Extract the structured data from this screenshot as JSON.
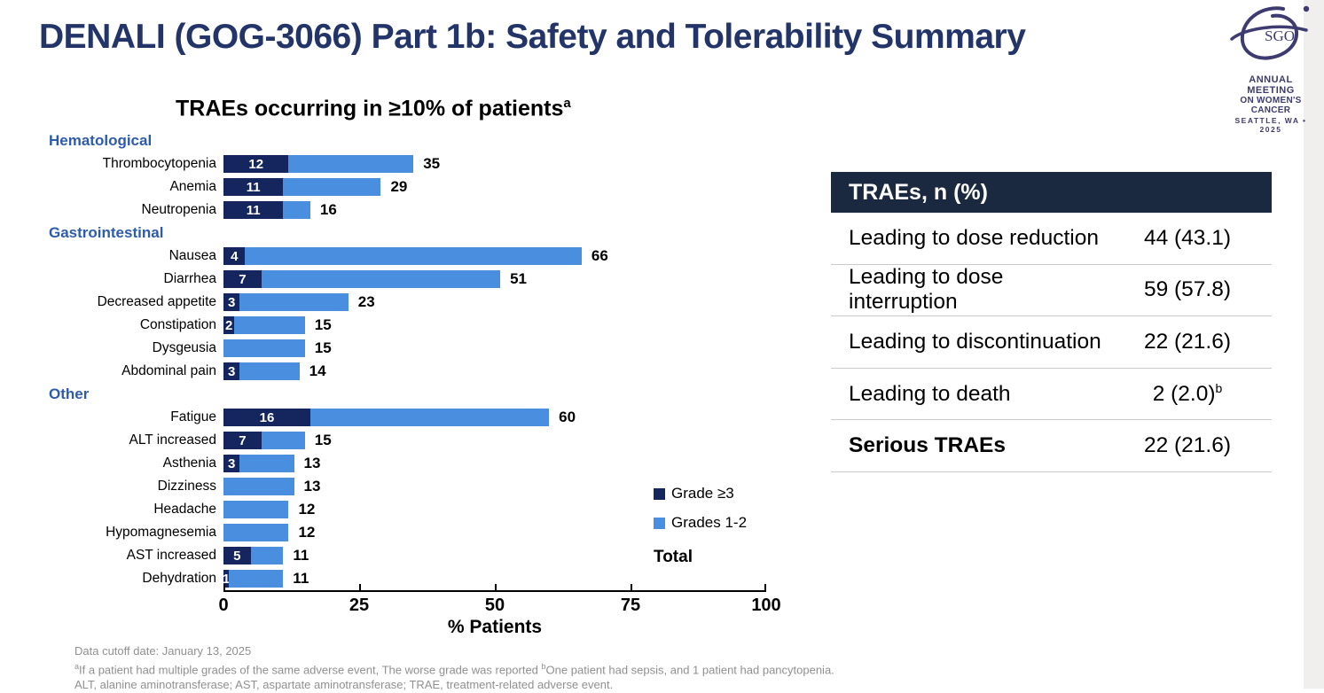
{
  "slide": {
    "title": "DENALI (GOG-3066) Part 1b: Safety and Tolerability Summary",
    "logo": {
      "org": "SGO",
      "line1": "ANNUAL MEETING",
      "line2": "ON WOMEN'S CANCER",
      "line3": "SEATTLE, WA • 2025"
    }
  },
  "chart_data": {
    "type": "bar",
    "orientation": "horizontal",
    "stacked": true,
    "title": "TRAEs occurring in ≥10% of patients",
    "title_superscript": "a",
    "xlabel": "% Patients",
    "xlim": [
      0,
      100
    ],
    "xticks": [
      0,
      25,
      50,
      75,
      100
    ],
    "legend": [
      {
        "label": "Grade ≥3",
        "color": "#15265e"
      },
      {
        "label": "Grades 1-2",
        "color": "#4a8ee0"
      },
      {
        "label": "Total",
        "color": null
      }
    ],
    "series_note": "grade3 = Grade ≥3 segment (dark navy, labeled inside bar); total = full bar length (Grades 1-2 segment = total - grade3); total labeled right of bar",
    "groups": [
      {
        "name": "Hematological",
        "rows": [
          {
            "label": "Thrombocytopenia",
            "grade3": 12,
            "total": 35
          },
          {
            "label": "Anemia",
            "grade3": 11,
            "total": 29
          },
          {
            "label": "Neutropenia",
            "grade3": 11,
            "total": 16
          }
        ]
      },
      {
        "name": "Gastrointestinal",
        "rows": [
          {
            "label": "Nausea",
            "grade3": 4,
            "total": 66
          },
          {
            "label": "Diarrhea",
            "grade3": 7,
            "total": 51
          },
          {
            "label": "Decreased appetite",
            "grade3": 3,
            "total": 23
          },
          {
            "label": "Constipation",
            "grade3": 2,
            "total": 15
          },
          {
            "label": "Dysgeusia",
            "grade3": 0,
            "total": 15
          },
          {
            "label": "Abdominal pain",
            "grade3": 3,
            "total": 14
          }
        ]
      },
      {
        "name": "Other",
        "rows": [
          {
            "label": "Fatigue",
            "grade3": 16,
            "total": 60
          },
          {
            "label": "ALT increased",
            "grade3": 7,
            "total": 15
          },
          {
            "label": "Asthenia",
            "grade3": 3,
            "total": 13
          },
          {
            "label": "Dizziness",
            "grade3": 0,
            "total": 13
          },
          {
            "label": "Headache",
            "grade3": 0,
            "total": 12
          },
          {
            "label": "Hypomagnesemia",
            "grade3": 0,
            "total": 12
          },
          {
            "label": "AST increased",
            "grade3": 5,
            "total": 11
          },
          {
            "label": "Dehydration",
            "grade3": 1,
            "total": 11
          }
        ]
      }
    ]
  },
  "table": {
    "header": "TRAEs, n (%)",
    "rows": [
      {
        "label": "Leading to dose reduction",
        "value": "44 (43.1)",
        "sup": "",
        "bold": false
      },
      {
        "label": "Leading to dose interruption",
        "value": "59 (57.8)",
        "sup": "",
        "bold": false
      },
      {
        "label": "Leading to discontinuation",
        "value": "22 (21.6)",
        "sup": "",
        "bold": false
      },
      {
        "label": "Leading to death",
        "value": "2 (2.0)",
        "sup": "b",
        "bold": false
      },
      {
        "label": "Serious TRAEs",
        "value": "22 (21.6)",
        "sup": "",
        "bold": true
      }
    ]
  },
  "footnotes": {
    "line1": "Data cutoff date: January 13, 2025",
    "line2_sup_a": "a",
    "line2_text_a": "If a patient had multiple grades of the same adverse event, The worse grade was reported ",
    "line2_sup_b": "b",
    "line2_text_b": "One patient had sepsis, and 1 patient had pancytopenia.",
    "line3": "ALT, alanine aminotransferase; AST, aspartate aminotransferase; TRAE, treatment-related adverse event."
  },
  "colors": {
    "grade3_bar": "#15265e",
    "grades12_bar": "#4a8ee0",
    "group_header_text": "#2d5bad",
    "title_text": "#223468",
    "table_header_bg": "#1a2940",
    "divider": "#cbcbcb",
    "footnote_text": "#909090",
    "logo": "#3d3b6f"
  }
}
